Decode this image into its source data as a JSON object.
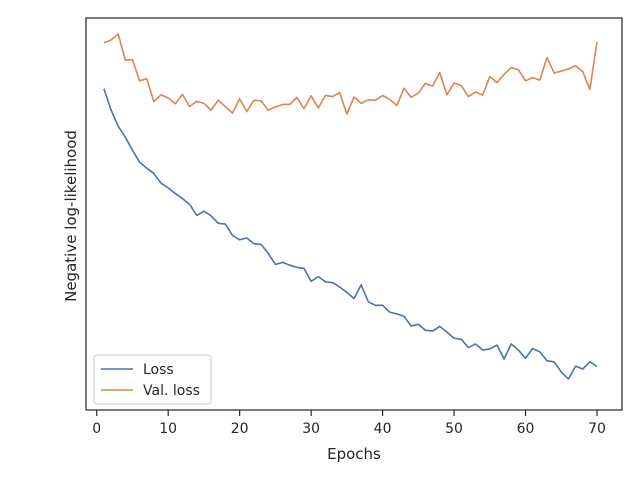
{
  "chart_data": {
    "type": "line",
    "xlabel": "Epochs",
    "ylabel": "Negative log-likelihood",
    "xlim": [
      -1.5,
      73.5
    ],
    "ylim": [
      0,
      1
    ],
    "xticks": [
      0,
      10,
      20,
      30,
      40,
      50,
      60,
      70
    ],
    "yticks_shown": false,
    "grid": false,
    "legend_position": "lower-left",
    "series": [
      {
        "name": "Loss",
        "color": "#4c72b0",
        "x": [
          1,
          2,
          3,
          4,
          5,
          6,
          7,
          8,
          9,
          10,
          11,
          12,
          13,
          14,
          15,
          16,
          17,
          18,
          19,
          20,
          21,
          22,
          23,
          24,
          25,
          26,
          27,
          28,
          29,
          30,
          31,
          32,
          33,
          34,
          35,
          36,
          37,
          38,
          39,
          40,
          41,
          42,
          43,
          44,
          45,
          46,
          47,
          48,
          49,
          50,
          51,
          52,
          53,
          54,
          55,
          56,
          57,
          58,
          59,
          60,
          61,
          62,
          63,
          64,
          65,
          66,
          67,
          68,
          69,
          70
        ],
        "values": [
          0.85,
          0.791,
          0.745,
          0.715,
          0.678,
          0.645,
          0.628,
          0.613,
          0.586,
          0.573,
          0.557,
          0.543,
          0.527,
          0.496,
          0.508,
          0.495,
          0.474,
          0.472,
          0.44,
          0.428,
          0.433,
          0.417,
          0.415,
          0.39,
          0.359,
          0.365,
          0.357,
          0.351,
          0.348,
          0.312,
          0.325,
          0.311,
          0.308,
          0.296,
          0.281,
          0.264,
          0.302,
          0.255,
          0.245,
          0.245,
          0.226,
          0.221,
          0.214,
          0.187,
          0.192,
          0.175,
          0.173,
          0.186,
          0.17,
          0.153,
          0.15,
          0.127,
          0.137,
          0.12,
          0.123,
          0.134,
          0.095,
          0.137,
          0.12,
          0.097,
          0.124,
          0.115,
          0.09,
          0.087,
          0.059,
          0.039,
          0.075,
          0.067,
          0.087,
          0.074
        ]
      },
      {
        "name": "Val. loss",
        "color": "#dd8452",
        "x": [
          1,
          2,
          3,
          4,
          5,
          6,
          7,
          8,
          9,
          10,
          11,
          12,
          13,
          14,
          15,
          16,
          17,
          18,
          19,
          20,
          21,
          22,
          23,
          24,
          25,
          26,
          27,
          28,
          29,
          30,
          31,
          32,
          33,
          34,
          35,
          36,
          37,
          38,
          39,
          40,
          41,
          42,
          43,
          44,
          45,
          46,
          47,
          48,
          49,
          50,
          51,
          52,
          53,
          54,
          55,
          56,
          57,
          58,
          59,
          60,
          61,
          62,
          63,
          64,
          65,
          66,
          67,
          68,
          69,
          70
        ],
        "values": [
          0.978,
          0.986,
          1.003,
          0.93,
          0.931,
          0.872,
          0.878,
          0.814,
          0.833,
          0.824,
          0.808,
          0.834,
          0.8,
          0.815,
          0.809,
          0.79,
          0.818,
          0.8,
          0.782,
          0.822,
          0.786,
          0.818,
          0.816,
          0.79,
          0.799,
          0.806,
          0.806,
          0.826,
          0.794,
          0.83,
          0.796,
          0.831,
          0.828,
          0.839,
          0.779,
          0.827,
          0.809,
          0.819,
          0.818,
          0.831,
          0.82,
          0.803,
          0.851,
          0.826,
          0.838,
          0.865,
          0.857,
          0.895,
          0.833,
          0.866,
          0.859,
          0.828,
          0.841,
          0.832,
          0.884,
          0.867,
          0.89,
          0.909,
          0.903,
          0.872,
          0.881,
          0.874,
          0.937,
          0.894,
          0.899,
          0.905,
          0.914,
          0.898,
          0.848,
          0.98
        ]
      }
    ]
  }
}
